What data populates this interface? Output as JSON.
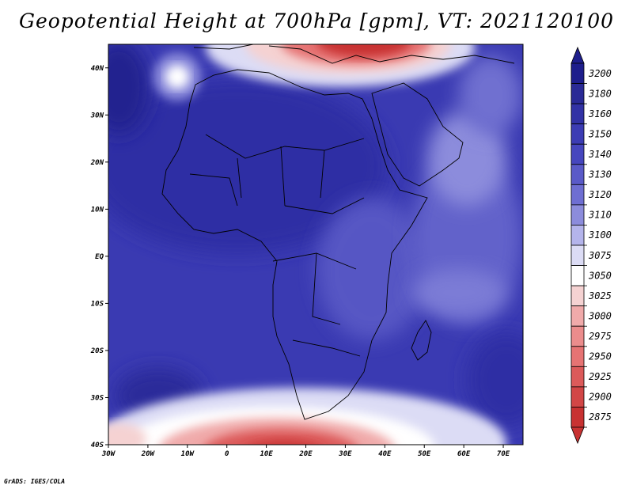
{
  "title": "Geopotential Height at 700hPa [gpm], VT: 2021120100",
  "credit": "GrADS: IGES/COLA",
  "map": {
    "region": "Africa",
    "lon_range": [
      -30,
      75
    ],
    "lat_range": [
      -40,
      45
    ],
    "lon_ticks": [
      {
        "value": -30,
        "label": "30W"
      },
      {
        "value": -20,
        "label": "20W"
      },
      {
        "value": -10,
        "label": "10W"
      },
      {
        "value": 0,
        "label": "0"
      },
      {
        "value": 10,
        "label": "10E"
      },
      {
        "value": 20,
        "label": "20E"
      },
      {
        "value": 30,
        "label": "30E"
      },
      {
        "value": 40,
        "label": "40E"
      },
      {
        "value": 50,
        "label": "50E"
      },
      {
        "value": 60,
        "label": "60E"
      },
      {
        "value": 70,
        "label": "70E"
      }
    ],
    "lat_ticks": [
      {
        "value": 40,
        "label": "40N"
      },
      {
        "value": 30,
        "label": "30N"
      },
      {
        "value": 20,
        "label": "20N"
      },
      {
        "value": 10,
        "label": "10N"
      },
      {
        "value": 0,
        "label": "EQ"
      },
      {
        "value": -10,
        "label": "10S"
      },
      {
        "value": -20,
        "label": "20S"
      },
      {
        "value": -30,
        "label": "30S"
      },
      {
        "value": -40,
        "label": "40S"
      }
    ]
  },
  "colorbar": {
    "levels": [
      {
        "label": "3200",
        "color": "#1e1e8c"
      },
      {
        "label": "3180",
        "color": "#2a2a96"
      },
      {
        "label": "3160",
        "color": "#3232a5"
      },
      {
        "label": "3150",
        "color": "#3c3cb4"
      },
      {
        "label": "3140",
        "color": "#4646be"
      },
      {
        "label": "3130",
        "color": "#5a5ac8"
      },
      {
        "label": "3120",
        "color": "#6e6ed2"
      },
      {
        "label": "3110",
        "color": "#8c8cdc"
      },
      {
        "label": "3100",
        "color": "#b4b4eb"
      },
      {
        "label": "3075",
        "color": "#dcdcf5"
      },
      {
        "label": "3050",
        "color": "#ffffff"
      },
      {
        "label": "3025",
        "color": "#f5d2d2"
      },
      {
        "label": "3000",
        "color": "#f0aaaa"
      },
      {
        "label": "2975",
        "color": "#eb8c8c"
      },
      {
        "label": "2950",
        "color": "#e67373"
      },
      {
        "label": "2925",
        "color": "#dc5a5a"
      },
      {
        "label": "2900",
        "color": "#d24646"
      },
      {
        "label": "2875",
        "color": "#c83232"
      }
    ],
    "top_arrow_color": "#1e1e8c",
    "bottom_arrow_color": "#c83232"
  },
  "colors": {
    "base_field": "#3a3ab2",
    "deep_blue": "#1e1e8c",
    "high_red": "#c83232",
    "white_band": "#ffffff",
    "coastline": "#000000"
  }
}
